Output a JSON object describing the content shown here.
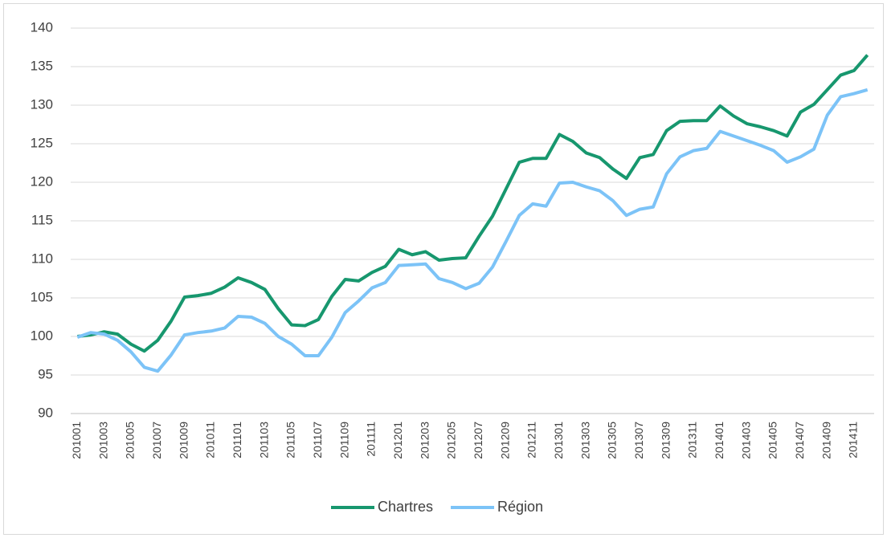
{
  "chart_data": {
    "type": "line",
    "categories": [
      "201001",
      null,
      "201003",
      null,
      "201005",
      null,
      "201007",
      null,
      "201009",
      null,
      "201011",
      null,
      "201101",
      null,
      "201103",
      null,
      "201105",
      null,
      "201107",
      null,
      "201109",
      null,
      "201111",
      null,
      "201201",
      null,
      "201203",
      null,
      "201205",
      null,
      "201207",
      null,
      "201209",
      null,
      "201211",
      null,
      "201301",
      null,
      "201303",
      null,
      "201305",
      null,
      "201307",
      null,
      "201309",
      null,
      "201311",
      null,
      "201401",
      null,
      "201403",
      null,
      "201405",
      null,
      "201407",
      null,
      "201409",
      null,
      "201411",
      null
    ],
    "series": [
      {
        "name": "Chartres",
        "color": "#17976e",
        "values": [
          100,
          100.2,
          100.6,
          100.3,
          99,
          98.1,
          99.5,
          102,
          105.1,
          105.3,
          105.6,
          106.4,
          107.6,
          107,
          106.1,
          103.6,
          101.5,
          101.4,
          102.2,
          105.2,
          107.4,
          107.2,
          108.3,
          109.1,
          111.3,
          110.6,
          111,
          109.9,
          110.1,
          110.2,
          113,
          115.6,
          119.1,
          122.6,
          123.1,
          123.1,
          126.2,
          125.3,
          123.8,
          123.2,
          121.7,
          120.5,
          123.2,
          123.6,
          126.7,
          127.9,
          128,
          128,
          129.9,
          128.6,
          127.6,
          127.2,
          126.7,
          126,
          129.1,
          130.1,
          132,
          133.9,
          134.5,
          136.5
        ]
      },
      {
        "name": "Région",
        "color": "#7cc3f7",
        "values": [
          99.9,
          100.5,
          100.3,
          99.5,
          98,
          96,
          95.5,
          97.6,
          100.2,
          100.5,
          100.7,
          101.1,
          102.6,
          102.5,
          101.7,
          100,
          99,
          97.5,
          97.5,
          99.9,
          103.1,
          104.6,
          106.3,
          107,
          109.2,
          109.3,
          109.4,
          107.5,
          107,
          106.2,
          106.9,
          109,
          112.3,
          115.7,
          117.2,
          116.9,
          119.9,
          120,
          119.4,
          118.9,
          117.6,
          115.7,
          116.5,
          116.8,
          121.1,
          123.3,
          124.1,
          124.4,
          126.6,
          126,
          125.4,
          124.8,
          124.1,
          122.6,
          123.3,
          124.3,
          128.7,
          131.1,
          131.5,
          132
        ]
      }
    ],
    "ylim": [
      90,
      140
    ],
    "yticks": [
      90,
      95,
      100,
      105,
      110,
      115,
      120,
      125,
      130,
      135,
      140
    ],
    "grid": true,
    "legend": "bottom"
  }
}
